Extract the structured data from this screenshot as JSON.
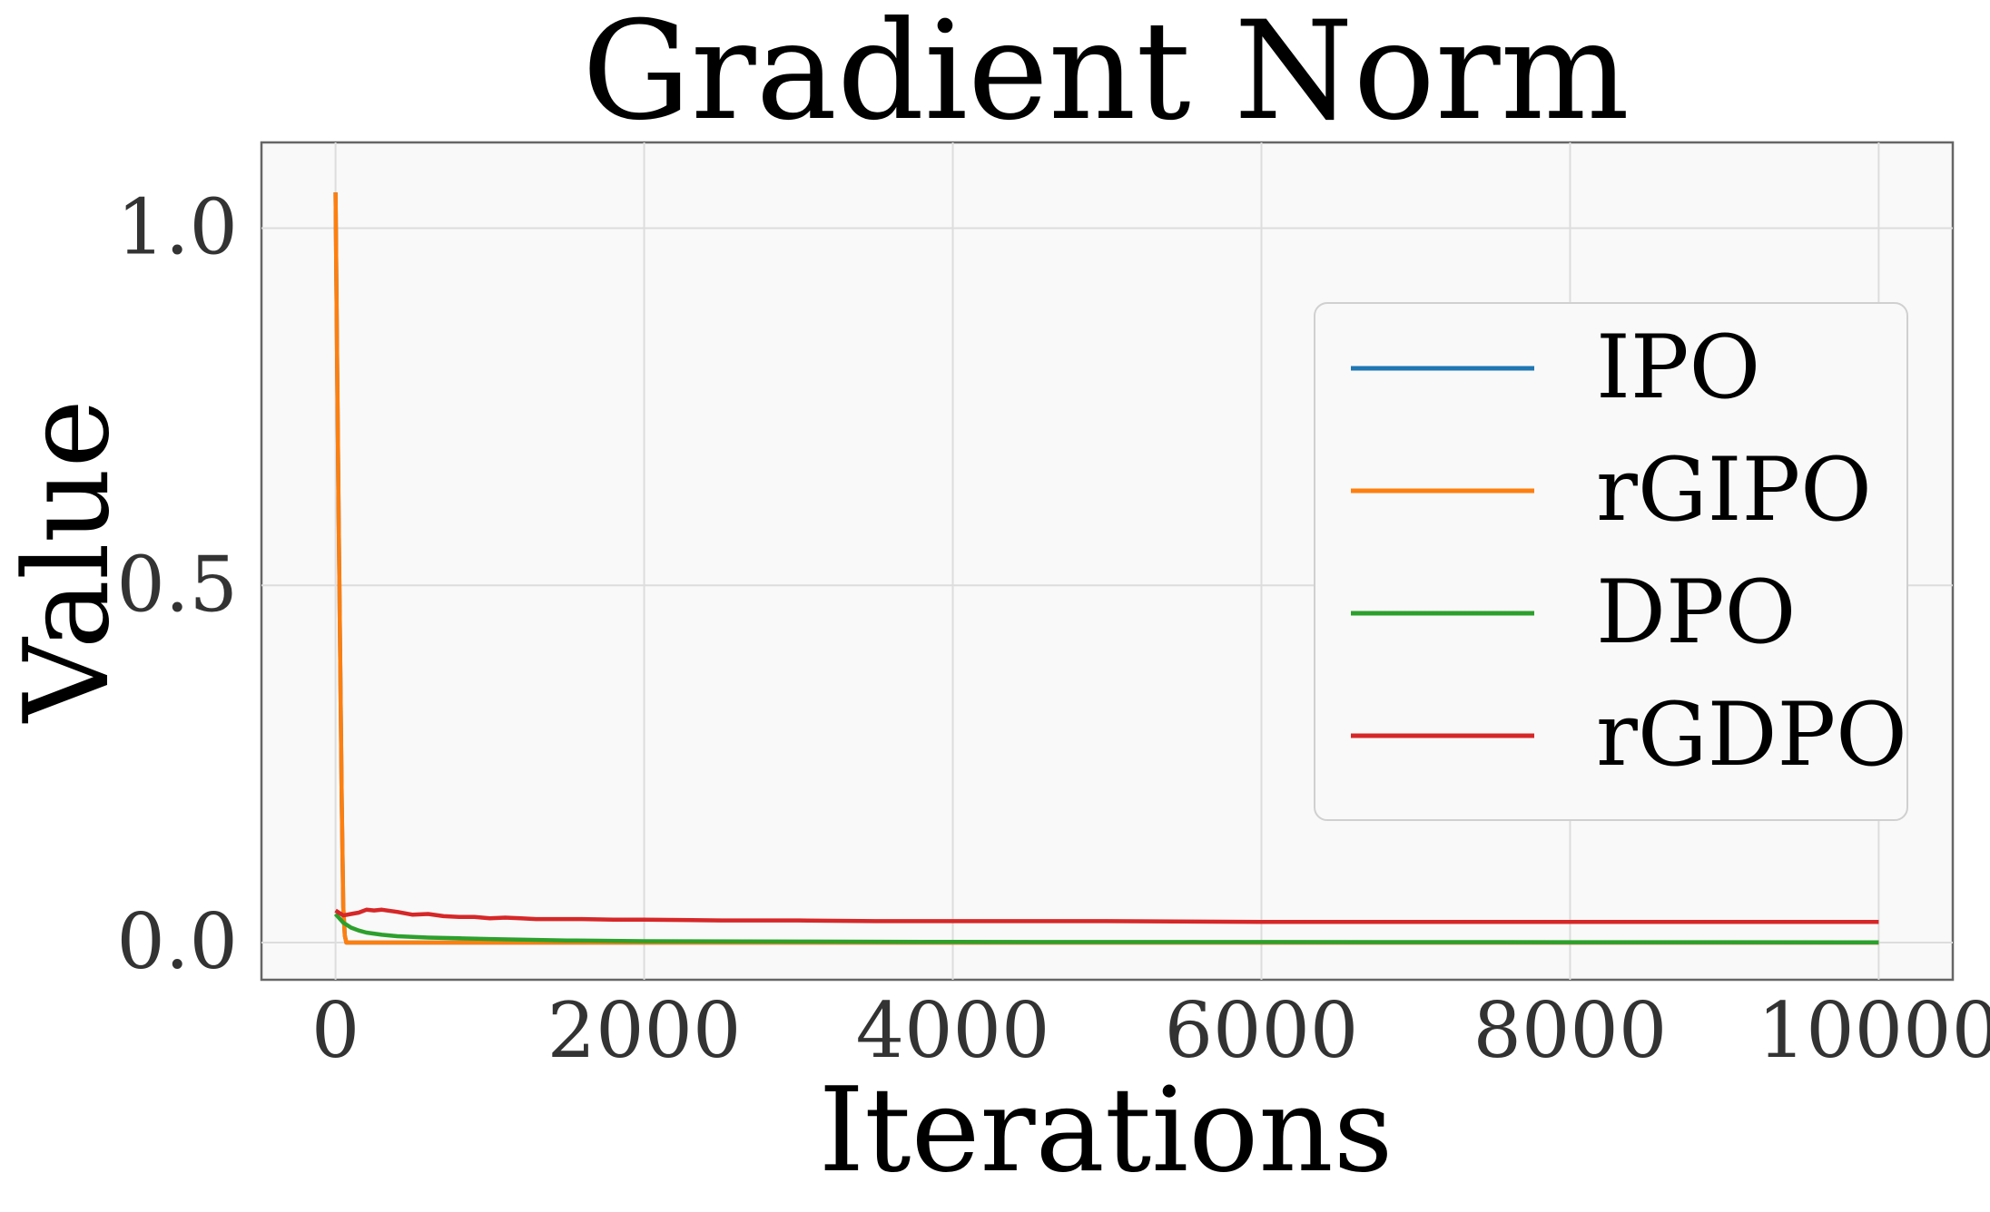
{
  "chart_data": {
    "type": "line",
    "title": "Gradient Norm",
    "xlabel": "Iterations",
    "ylabel": "Value",
    "xlim": [
      -480,
      10480
    ],
    "ylim": [
      -0.052,
      1.12
    ],
    "xticks": [
      0,
      2000,
      4000,
      6000,
      8000,
      10000
    ],
    "xtick_labels": [
      "0",
      "2000",
      "4000",
      "6000",
      "8000",
      "10000"
    ],
    "yticks": [
      0.0,
      0.5,
      1.0
    ],
    "ytick_labels": [
      "0.0",
      "0.5",
      "1.0"
    ],
    "grid": true,
    "legend_position": "upper right",
    "series": [
      {
        "name": "IPO",
        "color": "#1f77b4",
        "x": [
          0,
          10,
          20,
          30,
          40,
          50,
          60,
          70,
          80,
          100,
          200,
          500,
          1000,
          2000,
          4000,
          6000,
          8000,
          10000
        ],
        "y": [
          1.05,
          0.82,
          0.6,
          0.4,
          0.2,
          0.05,
          0.01,
          0.0,
          0.0,
          0.0,
          0.0,
          0.0,
          0.0,
          0.0,
          0.0,
          0.0,
          0.0,
          0.0
        ]
      },
      {
        "name": "rGIPO",
        "color": "#ff7f0e",
        "x": [
          0,
          10,
          20,
          30,
          40,
          50,
          60,
          70,
          80,
          100,
          200,
          500,
          1000,
          2000,
          4000,
          6000,
          8000,
          10000
        ],
        "y": [
          1.05,
          0.82,
          0.6,
          0.4,
          0.2,
          0.05,
          0.01,
          0.0,
          0.0,
          0.0,
          0.0,
          0.0,
          0.0,
          0.0,
          0.0,
          0.0,
          0.0,
          0.0
        ]
      },
      {
        "name": "DPO",
        "color": "#2ca02c",
        "x": [
          0,
          50,
          100,
          150,
          200,
          300,
          400,
          600,
          800,
          1000,
          1500,
          2000,
          3000,
          4000,
          6000,
          8000,
          10000
        ],
        "y": [
          0.04,
          0.028,
          0.021,
          0.017,
          0.014,
          0.011,
          0.009,
          0.007,
          0.006,
          0.005,
          0.003,
          0.002,
          0.0015,
          0.001,
          0.0008,
          0.0006,
          0.0005
        ]
      },
      {
        "name": "rGDPO",
        "color": "#d62728",
        "x": [
          0,
          50,
          100,
          150,
          200,
          250,
          300,
          400,
          500,
          600,
          700,
          800,
          900,
          1000,
          1100,
          1200,
          1300,
          1400,
          1600,
          1800,
          2000,
          2500,
          3000,
          3500,
          4000,
          5000,
          6000,
          7000,
          8000,
          9000,
          10000
        ],
        "y": [
          0.045,
          0.038,
          0.04,
          0.042,
          0.046,
          0.045,
          0.046,
          0.043,
          0.039,
          0.04,
          0.037,
          0.036,
          0.036,
          0.034,
          0.035,
          0.034,
          0.033,
          0.033,
          0.033,
          0.032,
          0.032,
          0.031,
          0.031,
          0.03,
          0.03,
          0.03,
          0.029,
          0.029,
          0.029,
          0.029,
          0.029
        ]
      }
    ]
  }
}
